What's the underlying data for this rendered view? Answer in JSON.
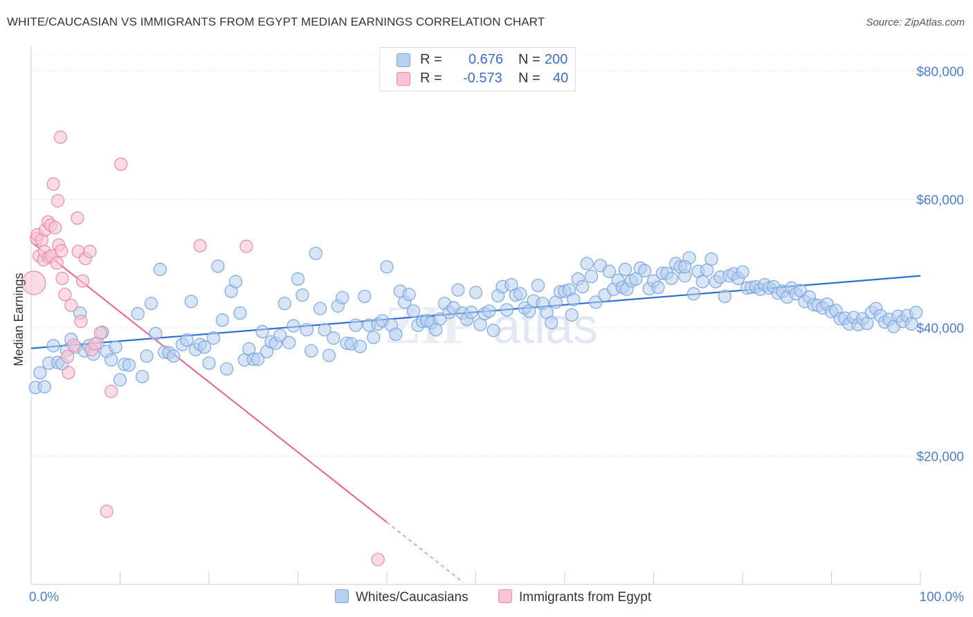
{
  "title": "WHITE/CAUCASIAN VS IMMIGRANTS FROM EGYPT MEDIAN EARNINGS CORRELATION CHART",
  "source": "Source: ZipAtlas.com",
  "legend": {
    "rows": [
      {
        "r_label": "R =",
        "r_value": "0.676",
        "n_label": "N =",
        "n_value": "200"
      },
      {
        "r_label": "R =",
        "r_value": "-0.573",
        "n_label": "N =",
        "n_value": "40"
      }
    ]
  },
  "bottom_legend": {
    "series1": "Whites/Caucasians",
    "series2": "Immigrants from Egypt"
  },
  "colors": {
    "blue_fill": "#b8d0f0",
    "blue_stroke": "#7aa6e0",
    "blue_line": "#2b6fd1",
    "pink_fill": "#f8c4d4",
    "pink_stroke": "#e88aa8",
    "pink_line": "#e86a96",
    "tick_text": "#4a7fd0",
    "grid": "#e4e4e4"
  },
  "chart_data": {
    "type": "scatter",
    "title": "WHITE/CAUCASIAN VS IMMIGRANTS FROM EGYPT MEDIAN EARNINGS CORRELATION CHART",
    "xlabel": "",
    "ylabel": "Median Earnings",
    "xlim": [
      0,
      100
    ],
    "ylim": [
      0,
      83000
    ],
    "x_tick_labels": [
      "0.0%",
      "100.0%"
    ],
    "y_ticks": [
      20000,
      40000,
      60000,
      80000
    ],
    "y_tick_labels": [
      "$20,000",
      "$40,000",
      "$60,000",
      "$80,000"
    ],
    "grid": true,
    "legend_position": "top-center",
    "series": [
      {
        "name": "Whites/Caucasians",
        "R": 0.676,
        "N": 200,
        "trend": {
          "x": [
            0,
            100
          ],
          "y": [
            36800,
            48100
          ]
        },
        "points": [
          [
            0.5,
            30700
          ],
          [
            1.5,
            30800
          ],
          [
            1,
            33000
          ],
          [
            2,
            34500
          ],
          [
            2.5,
            37200
          ],
          [
            3,
            34600
          ],
          [
            3.5,
            34400
          ],
          [
            4,
            36500
          ],
          [
            4.5,
            38200
          ],
          [
            5,
            37000
          ],
          [
            5.5,
            42300
          ],
          [
            6,
            36400
          ],
          [
            6.5,
            37200
          ],
          [
            7,
            35900
          ],
          [
            7.5,
            37600
          ],
          [
            8,
            39300
          ],
          [
            8.5,
            36300
          ],
          [
            9,
            35000
          ],
          [
            9.5,
            37000
          ],
          [
            10,
            31900
          ],
          [
            10.5,
            34300
          ],
          [
            11,
            34200
          ],
          [
            12,
            42200
          ],
          [
            12.5,
            32400
          ],
          [
            13,
            35600
          ],
          [
            13.5,
            43800
          ],
          [
            14,
            39100
          ],
          [
            14.5,
            49100
          ],
          [
            15,
            36200
          ],
          [
            15.5,
            36100
          ],
          [
            16,
            35600
          ],
          [
            17,
            37400
          ],
          [
            17.5,
            38100
          ],
          [
            18,
            44100
          ],
          [
            18.5,
            36600
          ],
          [
            19,
            37400
          ],
          [
            19.5,
            37000
          ],
          [
            20,
            34500
          ],
          [
            20.5,
            38400
          ],
          [
            21,
            49600
          ],
          [
            21.5,
            41200
          ],
          [
            22,
            33600
          ],
          [
            22.5,
            45700
          ],
          [
            23,
            47200
          ],
          [
            23.5,
            42300
          ],
          [
            24,
            35000
          ],
          [
            24.5,
            36700
          ],
          [
            25,
            35100
          ],
          [
            25.5,
            35100
          ],
          [
            26,
            39400
          ],
          [
            26.5,
            36300
          ],
          [
            27,
            37800
          ],
          [
            27.5,
            37600
          ],
          [
            28,
            38800
          ],
          [
            28.5,
            43800
          ],
          [
            29,
            37700
          ],
          [
            29.5,
            40300
          ],
          [
            30,
            47600
          ],
          [
            30.5,
            45100
          ],
          [
            31,
            39700
          ],
          [
            31.5,
            36400
          ],
          [
            32,
            51600
          ],
          [
            32.5,
            43000
          ],
          [
            33,
            39700
          ],
          [
            33.5,
            35700
          ],
          [
            34,
            38400
          ],
          [
            34.5,
            43400
          ],
          [
            35,
            44700
          ],
          [
            35.5,
            37600
          ],
          [
            36,
            37500
          ],
          [
            36.5,
            40400
          ],
          [
            37,
            37100
          ],
          [
            37.5,
            44900
          ],
          [
            38,
            40400
          ],
          [
            38.5,
            38500
          ],
          [
            39,
            40600
          ],
          [
            39.5,
            41100
          ],
          [
            40,
            49500
          ],
          [
            40.5,
            40400
          ],
          [
            41,
            39000
          ],
          [
            41.5,
            45700
          ],
          [
            42,
            44000
          ],
          [
            42.5,
            45200
          ],
          [
            43,
            42600
          ],
          [
            43.5,
            40400
          ],
          [
            44,
            41000
          ],
          [
            44.5,
            41100
          ],
          [
            45,
            40800
          ],
          [
            45.5,
            39700
          ],
          [
            46,
            41400
          ],
          [
            46.5,
            43800
          ],
          [
            47,
            42400
          ],
          [
            47.5,
            43100
          ],
          [
            48,
            45900
          ],
          [
            48.5,
            42300
          ],
          [
            49,
            41300
          ],
          [
            49.5,
            42400
          ],
          [
            50,
            45500
          ],
          [
            50.5,
            40500
          ],
          [
            51,
            42200
          ],
          [
            51.5,
            42600
          ],
          [
            52,
            39600
          ],
          [
            52.5,
            45000
          ],
          [
            53,
            46400
          ],
          [
            53.5,
            42800
          ],
          [
            54,
            46700
          ],
          [
            54.5,
            45100
          ],
          [
            55,
            45300
          ],
          [
            55.5,
            43100
          ],
          [
            56,
            42600
          ],
          [
            56.5,
            44200
          ],
          [
            57,
            46600
          ],
          [
            57.5,
            43800
          ],
          [
            58,
            42400
          ],
          [
            58.5,
            40800
          ],
          [
            59,
            44000
          ],
          [
            59.5,
            45600
          ],
          [
            60,
            45700
          ],
          [
            60.5,
            45900
          ],
          [
            61,
            44400
          ],
          [
            61.5,
            47600
          ],
          [
            62,
            46400
          ],
          [
            62.5,
            50000
          ],
          [
            63,
            48000
          ],
          [
            63.5,
            44000
          ],
          [
            64,
            49700
          ],
          [
            64.5,
            45100
          ],
          [
            65,
            48800
          ],
          [
            65.5,
            46000
          ],
          [
            66,
            47400
          ],
          [
            66.5,
            46300
          ],
          [
            67,
            46000
          ],
          [
            67.5,
            47300
          ],
          [
            68,
            47600
          ],
          [
            68.5,
            49300
          ],
          [
            69,
            48900
          ],
          [
            69.5,
            46100
          ],
          [
            70,
            47300
          ],
          [
            70.5,
            46300
          ],
          [
            71,
            48500
          ],
          [
            71.5,
            48500
          ],
          [
            72,
            47700
          ],
          [
            72.5,
            50000
          ],
          [
            73,
            49500
          ],
          [
            73.5,
            48100
          ],
          [
            74,
            50900
          ],
          [
            74.5,
            45300
          ],
          [
            75,
            48800
          ],
          [
            75.5,
            47200
          ],
          [
            76,
            49000
          ],
          [
            76.5,
            50700
          ],
          [
            77,
            47200
          ],
          [
            77.5,
            47900
          ],
          [
            78,
            44900
          ],
          [
            78.5,
            48100
          ],
          [
            79,
            48400
          ],
          [
            79.5,
            47700
          ],
          [
            80,
            48700
          ],
          [
            80.5,
            46200
          ],
          [
            81,
            46300
          ],
          [
            81.5,
            46400
          ],
          [
            82,
            46000
          ],
          [
            82.5,
            46700
          ],
          [
            83,
            46200
          ],
          [
            83.5,
            46400
          ],
          [
            84,
            45400
          ],
          [
            84.5,
            45700
          ],
          [
            85,
            44800
          ],
          [
            85.5,
            46200
          ],
          [
            86,
            45300
          ],
          [
            86.5,
            45800
          ],
          [
            87,
            44100
          ],
          [
            87.5,
            44800
          ],
          [
            88,
            43600
          ],
          [
            88.5,
            43500
          ],
          [
            89,
            43100
          ],
          [
            89.5,
            43700
          ],
          [
            90,
            42500
          ],
          [
            90.5,
            42700
          ],
          [
            91,
            41400
          ],
          [
            91.5,
            41500
          ],
          [
            92,
            40600
          ],
          [
            92.5,
            41600
          ],
          [
            93,
            40500
          ],
          [
            93.5,
            41400
          ],
          [
            94,
            40700
          ],
          [
            94.5,
            42400
          ],
          [
            95,
            43000
          ],
          [
            95.5,
            41900
          ],
          [
            96,
            40900
          ],
          [
            96.5,
            41300
          ],
          [
            97,
            40200
          ],
          [
            97.5,
            41800
          ],
          [
            98,
            41000
          ],
          [
            98.5,
            41900
          ],
          [
            99,
            40600
          ],
          [
            99.5,
            42400
          ],
          [
            60.8,
            42000
          ],
          [
            73.5,
            49500
          ],
          [
            66.8,
            49100
          ]
        ]
      },
      {
        "name": "Immigrants from Egypt",
        "R": -0.573,
        "N": 40,
        "trend": {
          "x": [
            0,
            40
          ],
          "y": [
            53400,
            9700
          ]
        },
        "trend_dashed": {
          "x": [
            40,
            48.6
          ],
          "y": [
            9700,
            300
          ]
        },
        "points": [
          [
            0.3,
            47000
          ],
          [
            0.6,
            53900
          ],
          [
            0.7,
            54500
          ],
          [
            0.9,
            51200
          ],
          [
            1.2,
            53700
          ],
          [
            1.4,
            50600
          ],
          [
            1.5,
            51900
          ],
          [
            1.6,
            55300
          ],
          [
            1.9,
            56500
          ],
          [
            2,
            51000
          ],
          [
            2.2,
            56000
          ],
          [
            2.3,
            51200
          ],
          [
            2.5,
            62400
          ],
          [
            2.7,
            55600
          ],
          [
            2.9,
            50100
          ],
          [
            3,
            59800
          ],
          [
            3.1,
            52900
          ],
          [
            3.3,
            69700
          ],
          [
            3.4,
            52000
          ],
          [
            3.5,
            47700
          ],
          [
            3.8,
            45200
          ],
          [
            4.1,
            35500
          ],
          [
            4.2,
            33000
          ],
          [
            4.5,
            43500
          ],
          [
            4.8,
            37300
          ],
          [
            5.2,
            57100
          ],
          [
            5.3,
            51900
          ],
          [
            5.6,
            41000
          ],
          [
            5.8,
            47300
          ],
          [
            6.1,
            50800
          ],
          [
            6.6,
            51900
          ],
          [
            6.8,
            36600
          ],
          [
            7.2,
            37500
          ],
          [
            7.8,
            39200
          ],
          [
            8.5,
            11400
          ],
          [
            9,
            30100
          ],
          [
            10.1,
            65500
          ],
          [
            19,
            52800
          ],
          [
            24.2,
            52700
          ],
          [
            39,
            3900
          ]
        ]
      }
    ]
  }
}
